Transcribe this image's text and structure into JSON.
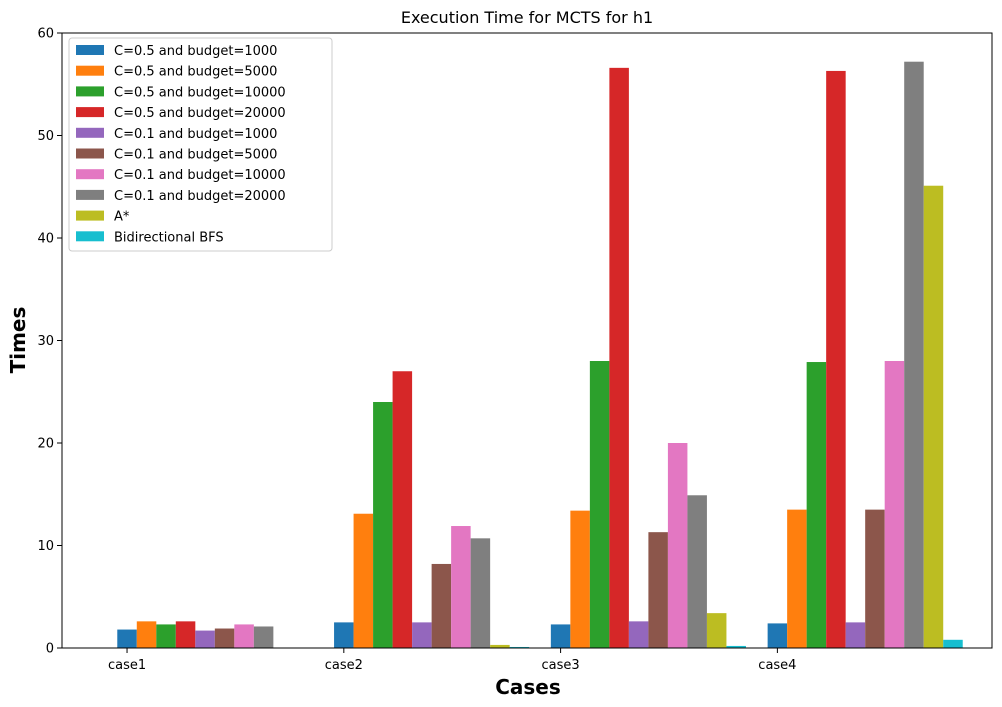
{
  "chart_data": {
    "type": "bar",
    "title": "Execution Time for MCTS for h1",
    "xlabel": "Cases",
    "ylabel": "Times",
    "categories": [
      "case1",
      "case2",
      "case3",
      "case4"
    ],
    "ylim": [
      0,
      60
    ],
    "yticks": [
      0,
      10,
      20,
      30,
      40,
      50,
      60
    ],
    "grid": false,
    "legend_position": "top-left",
    "series": [
      {
        "name": "C=0.5 and budget=1000",
        "color": "#1f77b4",
        "values": [
          1.8,
          2.5,
          2.3,
          2.4
        ]
      },
      {
        "name": "C=0.5 and budget=5000",
        "color": "#ff7f0e",
        "values": [
          2.6,
          13.1,
          13.4,
          13.5
        ]
      },
      {
        "name": "C=0.5 and budget=10000",
        "color": "#2ca02c",
        "values": [
          2.3,
          24.0,
          28.0,
          27.9
        ]
      },
      {
        "name": "C=0.5 and budget=20000",
        "color": "#d62728",
        "values": [
          2.6,
          27.0,
          56.6,
          56.3
        ]
      },
      {
        "name": "C=0.1 and budget=1000",
        "color": "#9467bd",
        "values": [
          1.7,
          2.5,
          2.6,
          2.5
        ]
      },
      {
        "name": "C=0.1 and budget=5000",
        "color": "#8c564b",
        "values": [
          1.9,
          8.2,
          11.3,
          13.5
        ]
      },
      {
        "name": "C=0.1 and budget=10000",
        "color": "#e377c2",
        "values": [
          2.3,
          11.9,
          20.0,
          28.0
        ]
      },
      {
        "name": "C=0.1 and budget=20000",
        "color": "#7f7f7f",
        "values": [
          2.1,
          10.7,
          14.9,
          57.2
        ]
      },
      {
        "name": "A*",
        "color": "#bcbd22",
        "values": [
          0,
          0.3,
          3.4,
          45.1
        ]
      },
      {
        "name": "Bidirectional BFS",
        "color": "#17becf",
        "values": [
          0,
          0.1,
          0.2,
          0.8
        ]
      }
    ]
  }
}
